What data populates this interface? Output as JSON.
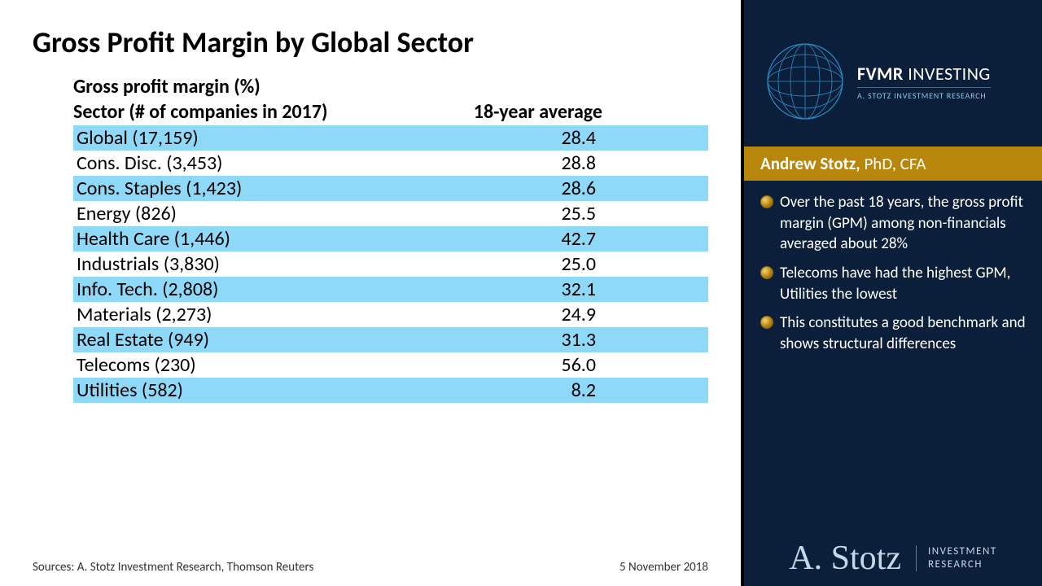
{
  "title": "Gross Profit Margin by Global Sector",
  "table": {
    "subtitle": "Gross profit margin (%)",
    "header_sector": "Sector (# of companies in 2017)",
    "header_avg": "18-year average",
    "highlight_color": "#8ed8f8",
    "row_fontsize": 24,
    "rows": [
      {
        "sector": "Global (17,159)",
        "value": "28.4",
        "highlight": true
      },
      {
        "sector": "Cons. Disc. (3,453)",
        "value": "28.8",
        "highlight": false
      },
      {
        "sector": "Cons. Staples (1,423)",
        "value": "28.6",
        "highlight": true
      },
      {
        "sector": "Energy (826)",
        "value": "25.5",
        "highlight": false
      },
      {
        "sector": "Health Care (1,446)",
        "value": "42.7",
        "highlight": true
      },
      {
        "sector": "Industrials (3,830)",
        "value": "25.0",
        "highlight": false
      },
      {
        "sector": "Info. Tech. (2,808)",
        "value": "32.1",
        "highlight": true
      },
      {
        "sector": "Materials (2,273)",
        "value": "24.9",
        "highlight": false
      },
      {
        "sector": "Real Estate (949)",
        "value": "31.3",
        "highlight": true
      },
      {
        "sector": "Telecoms (230)",
        "value": "56.0",
        "highlight": false
      },
      {
        "sector": "Utilities (582)",
        "value": "8.2",
        "highlight": true
      }
    ]
  },
  "footer": {
    "sources": "Sources: A. Stotz Investment Research, Thomson Reuters",
    "date": "5 November 2018"
  },
  "sidebar": {
    "background_color": "#0b1f3a",
    "brand_main": "FVMR",
    "brand_thin": "INVESTING",
    "brand_sub": "A. STOTZ INVESTMENT RESEARCH",
    "globe_stroke": "#2a8fc9",
    "author": {
      "name": "Andrew Stotz,",
      "credentials": " PhD, CFA",
      "bar_color": "#b8860b"
    },
    "bullets": [
      "Over the past 18 years, the gross profit margin (GPM) among non-financials averaged about 28%",
      "Telecoms have had the highest GPM, Utilities the lowest",
      "This constitutes a good benchmark and shows structural differences"
    ],
    "signature": "A. Stotz",
    "sig_brand_line1": "INVESTMENT",
    "sig_brand_line2": "RESEARCH"
  }
}
